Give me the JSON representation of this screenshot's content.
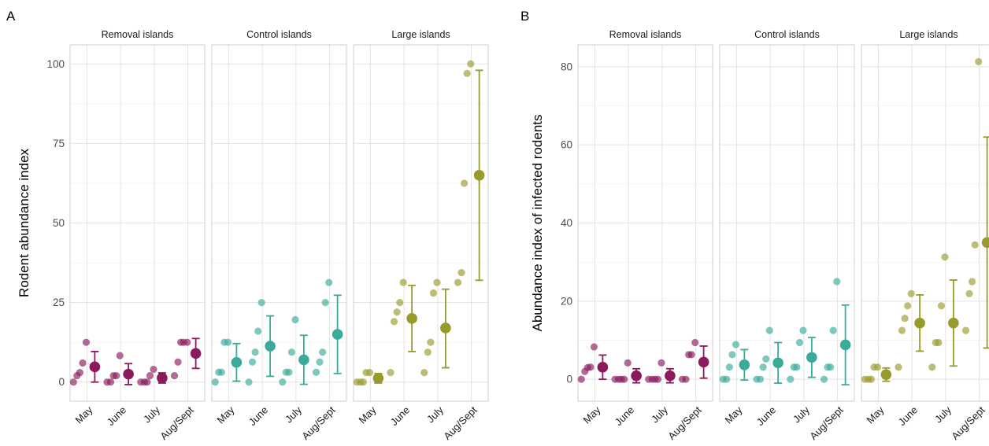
{
  "figure": {
    "panel_letters": [
      "A",
      "B"
    ]
  },
  "colors": {
    "Removal islands": "#8b1a5c",
    "Control islands": "#3aaa9a",
    "Large islands": "#999a2c"
  },
  "chart_data": [
    {
      "type": "scatter",
      "panel": "A",
      "ylabel": "Rodent abundance index",
      "xlabel": "",
      "ylim": [
        -6,
        106
      ],
      "yticks": [
        0,
        25,
        50,
        75,
        100
      ],
      "grid": true,
      "facets": [
        "Removal islands",
        "Control islands",
        "Large islands"
      ],
      "categories": [
        "May",
        "June",
        "July",
        "Aug/Sept"
      ],
      "series": [
        {
          "name": "Removal islands",
          "points": [
            [
              0,
              0
            ],
            [
              0,
              2
            ],
            [
              0,
              3
            ],
            [
              0,
              6
            ],
            [
              0,
              12.5
            ],
            [
              1,
              0
            ],
            [
              1,
              0
            ],
            [
              1,
              2
            ],
            [
              1,
              2
            ],
            [
              1,
              8.3
            ],
            [
              2,
              0
            ],
            [
              2,
              0
            ],
            [
              2,
              0
            ],
            [
              2,
              2
            ],
            [
              2,
              4
            ],
            [
              3,
              2
            ],
            [
              3,
              6.3
            ],
            [
              3,
              12.5
            ],
            [
              3,
              12.5
            ],
            [
              3,
              12.5
            ]
          ],
          "mean": [
            4.8,
            2.5,
            1.3,
            9
          ],
          "lower": [
            0,
            -0.8,
            -0.3,
            4.3
          ],
          "upper": [
            9.6,
            5.8,
            2.9,
            13.7
          ]
        },
        {
          "name": "Control islands",
          "points": [
            [
              0,
              0
            ],
            [
              0,
              3.1
            ],
            [
              0,
              3.1
            ],
            [
              0,
              12.5
            ],
            [
              0,
              12.5
            ],
            [
              1,
              0
            ],
            [
              1,
              6.3
            ],
            [
              1,
              9.4
            ],
            [
              1,
              16
            ],
            [
              1,
              25
            ],
            [
              2,
              0
            ],
            [
              2,
              3.1
            ],
            [
              2,
              3.1
            ],
            [
              2,
              9.4
            ],
            [
              2,
              19.6
            ],
            [
              3,
              3.1
            ],
            [
              3,
              6.3
            ],
            [
              3,
              9.4
            ],
            [
              3,
              25
            ],
            [
              3,
              31.3
            ]
          ],
          "mean": [
            6.2,
            11.3,
            7,
            15
          ],
          "lower": [
            0.3,
            1.8,
            -0.7,
            2.7
          ],
          "upper": [
            12.1,
            20.8,
            14.7,
            27.3
          ]
        },
        {
          "name": "Large islands",
          "points": [
            [
              0,
              0
            ],
            [
              0,
              0
            ],
            [
              0,
              0
            ],
            [
              0,
              3
            ],
            [
              0,
              3
            ],
            [
              1,
              3
            ],
            [
              1,
              19
            ],
            [
              1,
              22
            ],
            [
              1,
              25
            ],
            [
              1,
              31.3
            ],
            [
              2,
              3
            ],
            [
              2,
              9.4
            ],
            [
              2,
              12.5
            ],
            [
              2,
              28
            ],
            [
              2,
              31.3
            ],
            [
              3,
              31.3
            ],
            [
              3,
              34.4
            ],
            [
              3,
              62.5
            ],
            [
              3,
              97
            ],
            [
              3,
              100
            ]
          ],
          "mean": [
            1.2,
            20,
            17,
            65
          ],
          "lower": [
            -0.3,
            9.6,
            4.5,
            32
          ],
          "upper": [
            2.7,
            30.4,
            29.2,
            98
          ]
        }
      ]
    },
    {
      "type": "scatter",
      "panel": "B",
      "ylabel": "Abundance index of infected rodents",
      "xlabel": "",
      "ylim": [
        -5.6,
        85.6
      ],
      "yticks": [
        0,
        20,
        40,
        60,
        80
      ],
      "grid": true,
      "facets": [
        "Removal islands",
        "Control islands",
        "Large islands"
      ],
      "categories": [
        "May",
        "June",
        "July",
        "Aug/Sept"
      ],
      "series": [
        {
          "name": "Removal islands",
          "points": [
            [
              0,
              0
            ],
            [
              0,
              2
            ],
            [
              0,
              3
            ],
            [
              0,
              3.1
            ],
            [
              0,
              8.3
            ],
            [
              1,
              0
            ],
            [
              1,
              0
            ],
            [
              1,
              0
            ],
            [
              1,
              0
            ],
            [
              1,
              4.2
            ],
            [
              2,
              0
            ],
            [
              2,
              0
            ],
            [
              2,
              0
            ],
            [
              2,
              0
            ],
            [
              2,
              4.2
            ],
            [
              3,
              0
            ],
            [
              3,
              0
            ],
            [
              3,
              6.3
            ],
            [
              3,
              6.3
            ],
            [
              3,
              9.4
            ]
          ],
          "mean": [
            3.1,
            0.9,
            0.9,
            4.4
          ],
          "lower": [
            0,
            -0.9,
            -0.9,
            0.3
          ],
          "upper": [
            6.2,
            2.7,
            2.7,
            8.5
          ]
        },
        {
          "name": "Control islands",
          "points": [
            [
              0,
              0
            ],
            [
              0,
              0
            ],
            [
              0,
              3.1
            ],
            [
              0,
              6.3
            ],
            [
              0,
              8.9
            ],
            [
              1,
              0
            ],
            [
              1,
              0
            ],
            [
              1,
              3.1
            ],
            [
              1,
              5.2
            ],
            [
              1,
              12.5
            ],
            [
              2,
              0
            ],
            [
              2,
              3.1
            ],
            [
              2,
              3.1
            ],
            [
              2,
              9.4
            ],
            [
              2,
              12.5
            ],
            [
              3,
              0
            ],
            [
              3,
              3.1
            ],
            [
              3,
              3.1
            ],
            [
              3,
              12.5
            ],
            [
              3,
              25
            ]
          ],
          "mean": [
            3.7,
            4.2,
            5.6,
            8.8
          ],
          "lower": [
            -0.2,
            -1,
            0.5,
            -1.4
          ],
          "upper": [
            7.6,
            9.4,
            10.7,
            19
          ]
        },
        {
          "name": "Large islands",
          "points": [
            [
              0,
              0
            ],
            [
              0,
              0
            ],
            [
              0,
              0
            ],
            [
              0,
              3.1
            ],
            [
              0,
              3.1
            ],
            [
              1,
              3.1
            ],
            [
              1,
              12.5
            ],
            [
              1,
              15.6
            ],
            [
              1,
              18.8
            ],
            [
              1,
              21.9
            ],
            [
              2,
              3.1
            ],
            [
              2,
              9.4
            ],
            [
              2,
              9.4
            ],
            [
              2,
              18.8
            ],
            [
              2,
              31.3
            ],
            [
              3,
              12.5
            ],
            [
              3,
              21.9
            ],
            [
              3,
              25
            ],
            [
              3,
              34.4
            ],
            [
              3,
              81.3
            ]
          ],
          "mean": [
            1.2,
            14.4,
            14.4,
            35
          ],
          "lower": [
            -0.5,
            7.2,
            3.4,
            8
          ],
          "upper": [
            2.9,
            21.6,
            25.4,
            62
          ]
        }
      ]
    }
  ]
}
